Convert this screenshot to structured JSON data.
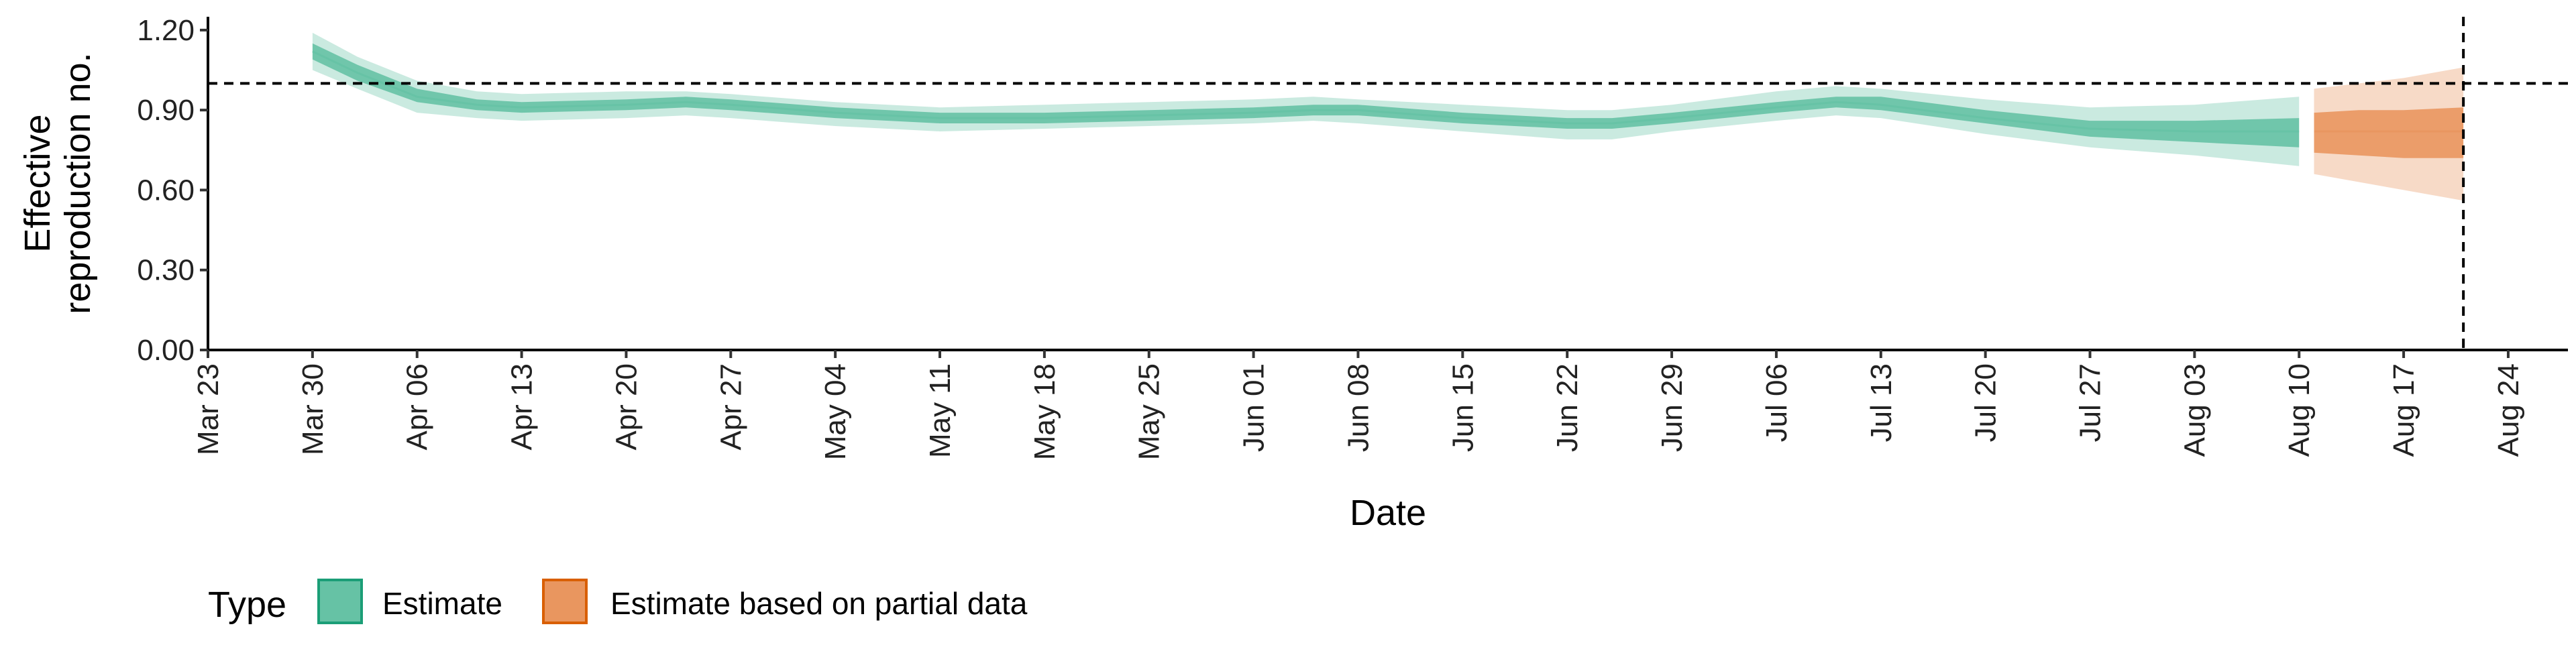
{
  "chart_data": {
    "type": "area",
    "xlabel": "Date",
    "ylabel_lines": [
      "Effective",
      "reproduction no."
    ],
    "ylim": [
      0,
      1.25
    ],
    "y_ticks": [
      0.0,
      0.3,
      0.6,
      0.9,
      1.2
    ],
    "y_tick_labels": [
      "0.00",
      "0.30",
      "0.60",
      "0.90",
      "1.20"
    ],
    "x_range": [
      "2020-03-23",
      "2020-08-28"
    ],
    "x_ticks": [
      "2020-03-23",
      "2020-03-30",
      "2020-04-06",
      "2020-04-13",
      "2020-04-20",
      "2020-04-27",
      "2020-05-04",
      "2020-05-11",
      "2020-05-18",
      "2020-05-25",
      "2020-06-01",
      "2020-06-08",
      "2020-06-15",
      "2020-06-22",
      "2020-06-29",
      "2020-07-06",
      "2020-07-13",
      "2020-07-20",
      "2020-07-27",
      "2020-08-03",
      "2020-08-10",
      "2020-08-17",
      "2020-08-24"
    ],
    "x_tick_labels": [
      "Mar 23",
      "Mar 30",
      "Apr 06",
      "Apr 13",
      "Apr 20",
      "Apr 27",
      "May 04",
      "May 11",
      "May 18",
      "May 25",
      "Jun 01",
      "Jun 08",
      "Jun 15",
      "Jun 22",
      "Jun 29",
      "Jul 06",
      "Jul 13",
      "Jul 20",
      "Jul 27",
      "Aug 03",
      "Aug 10",
      "Aug 17",
      "Aug 24"
    ],
    "reference_line_y": 1.0,
    "reference_line_x": "2020-08-21",
    "grid": false,
    "legend": {
      "title": "Type",
      "position": "bottom-left",
      "items": [
        {
          "label": "Estimate",
          "fill": "#66c2a5",
          "stroke": "#1b9e77"
        },
        {
          "label": "Estimate based on partial data",
          "fill": "#e9965f",
          "stroke": "#d95f02"
        }
      ]
    },
    "series": [
      {
        "name": "Estimate",
        "color": "#66c2a5",
        "points": [
          {
            "date": "2020-03-30",
            "median": 1.12,
            "lower50": 1.09,
            "upper50": 1.15,
            "lower90": 1.05,
            "upper90": 1.19
          },
          {
            "date": "2020-04-02",
            "median": 1.04,
            "lower50": 1.01,
            "upper50": 1.07,
            "lower90": 0.98,
            "upper90": 1.1
          },
          {
            "date": "2020-04-06",
            "median": 0.95,
            "lower50": 0.93,
            "upper50": 0.98,
            "lower90": 0.89,
            "upper90": 1.01
          },
          {
            "date": "2020-04-10",
            "median": 0.92,
            "lower50": 0.9,
            "upper50": 0.94,
            "lower90": 0.87,
            "upper90": 0.97
          },
          {
            "date": "2020-04-13",
            "median": 0.91,
            "lower50": 0.89,
            "upper50": 0.93,
            "lower90": 0.86,
            "upper90": 0.96
          },
          {
            "date": "2020-04-20",
            "median": 0.92,
            "lower50": 0.9,
            "upper50": 0.94,
            "lower90": 0.87,
            "upper90": 0.97
          },
          {
            "date": "2020-04-24",
            "median": 0.93,
            "lower50": 0.91,
            "upper50": 0.95,
            "lower90": 0.88,
            "upper90": 0.97
          },
          {
            "date": "2020-04-27",
            "median": 0.92,
            "lower50": 0.9,
            "upper50": 0.94,
            "lower90": 0.87,
            "upper90": 0.96
          },
          {
            "date": "2020-05-04",
            "median": 0.89,
            "lower50": 0.87,
            "upper50": 0.91,
            "lower90": 0.84,
            "upper90": 0.93
          },
          {
            "date": "2020-05-11",
            "median": 0.87,
            "lower50": 0.85,
            "upper50": 0.89,
            "lower90": 0.82,
            "upper90": 0.91
          },
          {
            "date": "2020-05-18",
            "median": 0.87,
            "lower50": 0.85,
            "upper50": 0.89,
            "lower90": 0.83,
            "upper90": 0.92
          },
          {
            "date": "2020-05-25",
            "median": 0.88,
            "lower50": 0.86,
            "upper50": 0.9,
            "lower90": 0.84,
            "upper90": 0.93
          },
          {
            "date": "2020-06-01",
            "median": 0.89,
            "lower50": 0.87,
            "upper50": 0.91,
            "lower90": 0.85,
            "upper90": 0.94
          },
          {
            "date": "2020-06-05",
            "median": 0.9,
            "lower50": 0.88,
            "upper50": 0.92,
            "lower90": 0.86,
            "upper90": 0.95
          },
          {
            "date": "2020-06-08",
            "median": 0.9,
            "lower50": 0.88,
            "upper50": 0.92,
            "lower90": 0.85,
            "upper90": 0.94
          },
          {
            "date": "2020-06-15",
            "median": 0.87,
            "lower50": 0.85,
            "upper50": 0.89,
            "lower90": 0.82,
            "upper90": 0.92
          },
          {
            "date": "2020-06-22",
            "median": 0.85,
            "lower50": 0.83,
            "upper50": 0.87,
            "lower90": 0.79,
            "upper90": 0.9
          },
          {
            "date": "2020-06-25",
            "median": 0.85,
            "lower50": 0.83,
            "upper50": 0.87,
            "lower90": 0.79,
            "upper90": 0.9
          },
          {
            "date": "2020-06-29",
            "median": 0.87,
            "lower50": 0.85,
            "upper50": 0.89,
            "lower90": 0.82,
            "upper90": 0.92
          },
          {
            "date": "2020-07-06",
            "median": 0.91,
            "lower50": 0.89,
            "upper50": 0.93,
            "lower90": 0.86,
            "upper90": 0.97
          },
          {
            "date": "2020-07-10",
            "median": 0.93,
            "lower50": 0.91,
            "upper50": 0.95,
            "lower90": 0.88,
            "upper90": 0.99
          },
          {
            "date": "2020-07-13",
            "median": 0.92,
            "lower50": 0.9,
            "upper50": 0.95,
            "lower90": 0.87,
            "upper90": 0.98
          },
          {
            "date": "2020-07-20",
            "median": 0.87,
            "lower50": 0.85,
            "upper50": 0.9,
            "lower90": 0.81,
            "upper90": 0.94
          },
          {
            "date": "2020-07-27",
            "median": 0.83,
            "lower50": 0.8,
            "upper50": 0.86,
            "lower90": 0.76,
            "upper90": 0.91
          },
          {
            "date": "2020-08-03",
            "median": 0.82,
            "lower50": 0.78,
            "upper50": 0.86,
            "lower90": 0.73,
            "upper90": 0.92
          },
          {
            "date": "2020-08-10",
            "median": 0.82,
            "lower50": 0.76,
            "upper50": 0.87,
            "lower90": 0.69,
            "upper90": 0.95
          }
        ]
      },
      {
        "name": "Estimate based on partial data",
        "color": "#e9965f",
        "points": [
          {
            "date": "2020-08-11",
            "median": 0.82,
            "lower50": 0.74,
            "upper50": 0.89,
            "lower90": 0.66,
            "upper90": 0.98
          },
          {
            "date": "2020-08-14",
            "median": 0.82,
            "lower50": 0.73,
            "upper50": 0.9,
            "lower90": 0.63,
            "upper90": 1.0
          },
          {
            "date": "2020-08-17",
            "median": 0.82,
            "lower50": 0.72,
            "upper50": 0.9,
            "lower90": 0.6,
            "upper90": 1.02
          },
          {
            "date": "2020-08-21",
            "median": 0.82,
            "lower50": 0.72,
            "upper50": 0.91,
            "lower90": 0.56,
            "upper90": 1.06
          }
        ]
      }
    ]
  }
}
